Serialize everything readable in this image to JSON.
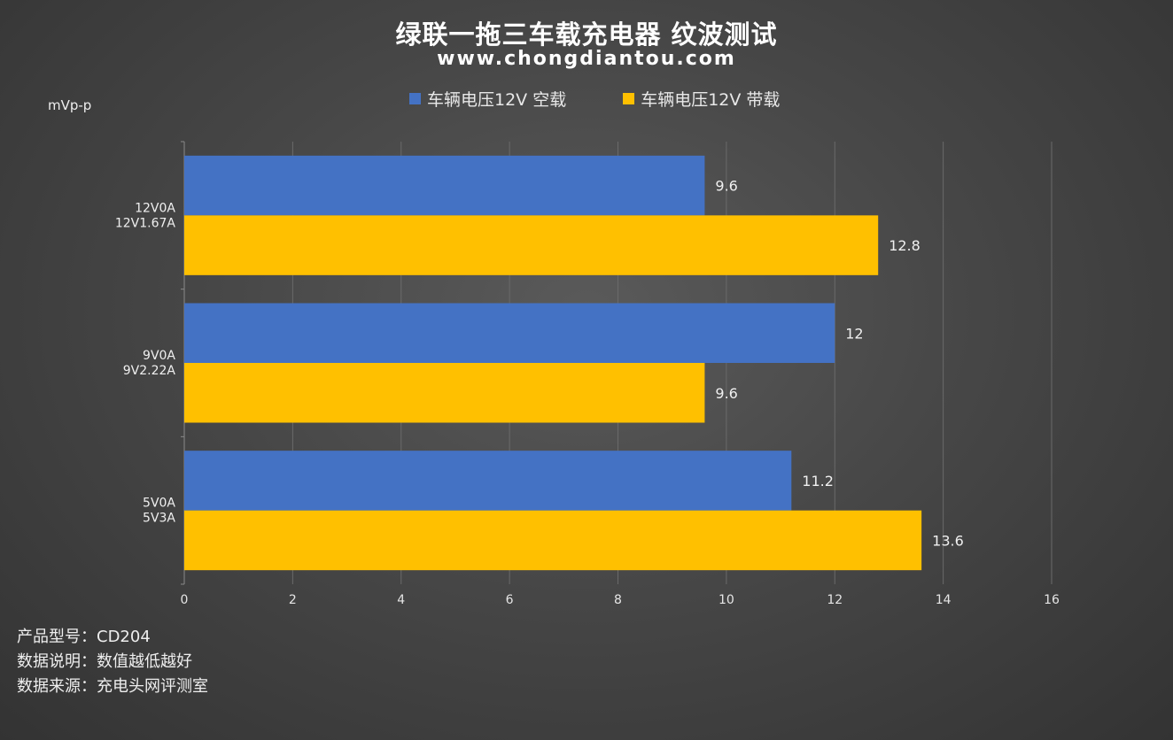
{
  "header": {
    "title": "绿联一拖三车载充电器 纹波测试",
    "subtitle": "www.chongdiantou.com"
  },
  "chart_data": {
    "type": "bar",
    "orientation": "horizontal",
    "y_unit_label": "mVp-p",
    "categories": [
      [
        "12V0A",
        "12V1.67A"
      ],
      [
        "9V0A",
        "9V2.22A"
      ],
      [
        "5V0A",
        "5V3A"
      ]
    ],
    "series": [
      {
        "name": "车辆电压12V 空载",
        "color": "#4472c4",
        "values": [
          9.6,
          12,
          11.2
        ],
        "labels": [
          "9.6",
          "12",
          "11.2"
        ]
      },
      {
        "name": "车辆电压12V 带载",
        "color": "#ffc000",
        "values": [
          12.8,
          9.6,
          13.6
        ],
        "labels": [
          "12.8",
          "9.6",
          "13.6"
        ]
      }
    ],
    "xlim": [
      0,
      16
    ],
    "xticks": [
      "0",
      "2",
      "4",
      "6",
      "8",
      "10",
      "12",
      "14",
      "16"
    ],
    "grid": true,
    "legend": "top-center"
  },
  "footnotes": [
    "产品型号：CD204",
    "数据说明：数值越低越好",
    "数据来源：充电头网评测室"
  ]
}
